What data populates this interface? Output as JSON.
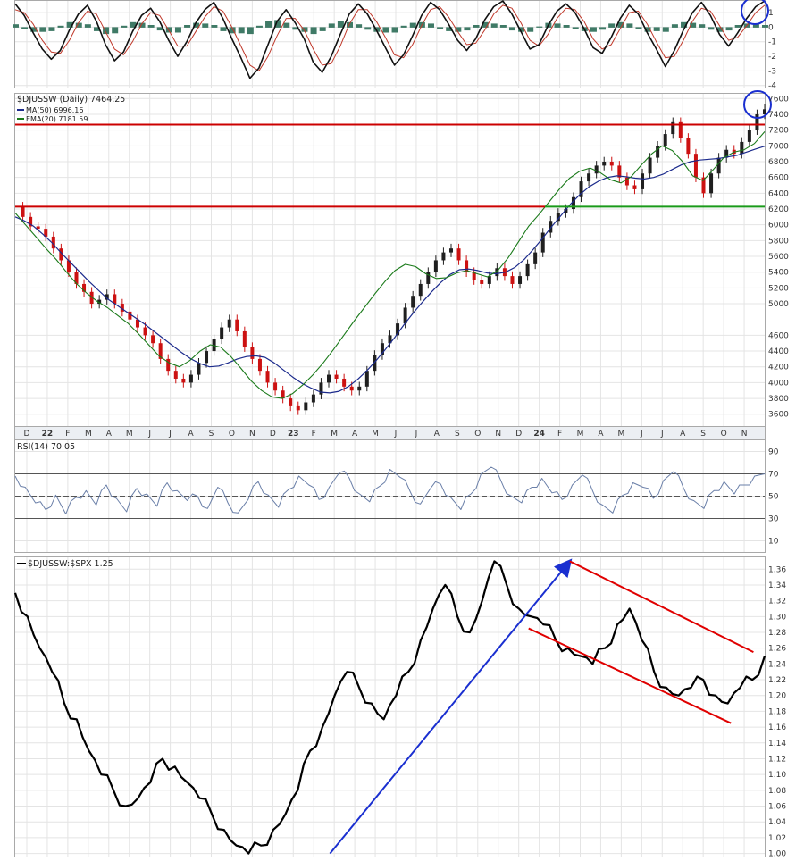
{
  "colors": {
    "background": "#ffffff",
    "panel_border": "#a9a9a9",
    "grid": "#e4e4e4",
    "axis_strip": "#eceff3",
    "axis_text": "#333333",
    "up_candle": "#1f1f1f",
    "down_candle": "#cc1111",
    "ma50": "#1b2a8c",
    "ema20": "#1a7a1a",
    "resistance": "#cc0000",
    "support": "#1a9a1a",
    "rsi_line": "#6a7fa8",
    "ratio_line": "#000000",
    "uptrend_arrow": "#1a2fd0",
    "channel": "#e00000",
    "circle": "#1a2fd0",
    "macd_line": "#111111",
    "macd_signal": "#c0392b",
    "macd_hist": "#3f7a66"
  },
  "x_axis": {
    "labels": [
      "D",
      "22",
      "F",
      "M",
      "A",
      "M",
      "J",
      "J",
      "A",
      "S",
      "O",
      "N",
      "D",
      "23",
      "F",
      "M",
      "A",
      "M",
      "J",
      "J",
      "A",
      "S",
      "O",
      "N",
      "D",
      "24",
      "F",
      "M",
      "A",
      "M",
      "J",
      "J",
      "A",
      "S",
      "O",
      "N"
    ],
    "bold_labels": [
      "22",
      "23",
      "24"
    ]
  },
  "chart_data": [
    {
      "panel": "macd",
      "type": "line",
      "title": "",
      "y_ticks": [
        "1",
        "0",
        "-1",
        "-2",
        "-3",
        "-4"
      ],
      "ylim": [
        -4.2,
        1.8
      ],
      "grid": true,
      "series": [
        {
          "values": [
            1.6,
            0.8,
            -0.4,
            -1.5,
            -2.2,
            -1.6,
            -0.2,
            0.9,
            1.5,
            0.4,
            -1.2,
            -2.3,
            -1.7,
            -0.3,
            0.8,
            1.3,
            0.4,
            -0.9,
            -2.0,
            -1.0,
            0.3,
            1.2,
            1.7,
            0.6,
            -0.8,
            -2.1,
            -3.5,
            -2.8,
            -1.2,
            0.4,
            1.2,
            0.3,
            -0.8,
            -2.4,
            -3.1,
            -2.0,
            -0.5,
            0.9,
            1.6,
            0.9,
            -0.2,
            -1.4,
            -2.6,
            -1.9,
            -0.6,
            0.8,
            1.7,
            1.2,
            0.2,
            -0.9,
            -1.6,
            -0.8,
            0.5,
            1.4,
            1.8,
            0.9,
            -0.3,
            -1.5,
            -1.2,
            0.1,
            1.1,
            1.6,
            1.0,
            -0.1,
            -1.4,
            -1.8,
            -0.7,
            0.6,
            1.5,
            0.9,
            -0.4,
            -1.5,
            -2.7,
            -1.6,
            -0.2,
            1.0,
            1.7,
            0.8,
            -0.5,
            -1.3,
            -0.4,
            0.6,
            1.4,
            1.8
          ]
        },
        {
          "values": [
            1.2,
            1.0,
            0.2,
            -0.9,
            -1.7,
            -1.8,
            -0.9,
            0.3,
            1.1,
            0.9,
            -0.3,
            -1.5,
            -1.9,
            -1.0,
            0.2,
            1.0,
            0.8,
            -0.2,
            -1.3,
            -1.3,
            -0.3,
            0.7,
            1.4,
            1.1,
            0.0,
            -1.3,
            -2.6,
            -3.0,
            -2.0,
            -0.6,
            0.6,
            0.6,
            -0.2,
            -1.5,
            -2.6,
            -2.5,
            -1.3,
            0.2,
            1.2,
            1.2,
            0.4,
            -0.7,
            -1.9,
            -2.1,
            -1.2,
            0.1,
            1.2,
            1.4,
            0.7,
            -0.3,
            -1.2,
            -1.1,
            -0.2,
            0.9,
            1.5,
            1.3,
            0.3,
            -0.9,
            -1.3,
            -0.5,
            0.6,
            1.3,
            1.2,
            0.4,
            -0.8,
            -1.5,
            -1.2,
            -0.1,
            1.0,
            1.1,
            0.2,
            -1.0,
            -2.1,
            -2.0,
            -0.9,
            0.4,
            1.3,
            1.1,
            0.1,
            -0.9,
            -0.7,
            0.1,
            1.0,
            1.5
          ]
        }
      ]
    },
    {
      "panel": "price",
      "type": "line",
      "title": "$DJUSSW (Daily) 7464.25",
      "legend": [
        {
          "name": "MA(50) 6996.16",
          "color": "#1b2a8c"
        },
        {
          "name": "EMA(20) 7181.59",
          "color": "#1a7a1a"
        }
      ],
      "ylim": [
        3450,
        7660
      ],
      "y_ticks": [
        7600,
        7400,
        7200,
        7000,
        6800,
        6600,
        6400,
        6200,
        6000,
        5800,
        5600,
        5400,
        5200,
        5000,
        4600,
        4400,
        4200,
        4000,
        3800,
        3600
      ],
      "grid": true,
      "price_values": [
        6230,
        6100,
        5980,
        5950,
        5850,
        5700,
        5550,
        5400,
        5250,
        5150,
        5000,
        5050,
        5120,
        5000,
        4900,
        4800,
        4700,
        4600,
        4500,
        4300,
        4150,
        4050,
        4000,
        4100,
        4250,
        4400,
        4550,
        4700,
        4800,
        4650,
        4450,
        4300,
        4150,
        4000,
        3900,
        3800,
        3700,
        3650,
        3750,
        3850,
        4000,
        4100,
        4050,
        3950,
        3900,
        3950,
        4150,
        4350,
        4500,
        4600,
        4750,
        4950,
        5100,
        5250,
        5400,
        5550,
        5650,
        5700,
        5550,
        5400,
        5300,
        5250,
        5350,
        5450,
        5350,
        5250,
        5350,
        5500,
        5650,
        5900,
        6050,
        6150,
        6200,
        6350,
        6550,
        6650,
        6750,
        6800,
        6750,
        6600,
        6500,
        6450,
        6650,
        6850,
        7000,
        7150,
        7300,
        7100,
        6900,
        6600,
        6400,
        6650,
        6850,
        6950,
        6900,
        7050,
        7200,
        7400,
        7464
      ],
      "ma50_values": [
        6100,
        6050,
        5980,
        5880,
        5770,
        5640,
        5520,
        5400,
        5280,
        5170,
        5060,
        4980,
        4900,
        4820,
        4740,
        4650,
        4560,
        4470,
        4380,
        4300,
        4240,
        4200,
        4210,
        4250,
        4300,
        4330,
        4340,
        4320,
        4250,
        4160,
        4070,
        3990,
        3930,
        3880,
        3870,
        3890,
        3950,
        4040,
        4150,
        4280,
        4420,
        4570,
        4730,
        4880,
        5020,
        5150,
        5270,
        5370,
        5430,
        5440,
        5420,
        5390,
        5380,
        5400,
        5460,
        5560,
        5690,
        5830,
        5980,
        6120,
        6260,
        6380,
        6480,
        6550,
        6600,
        6620,
        6610,
        6590,
        6580,
        6600,
        6640,
        6700,
        6760,
        6800,
        6820,
        6830,
        6840,
        6860,
        6880,
        6920,
        6960,
        6996
      ],
      "ema20_values": [
        6150,
        6000,
        5850,
        5700,
        5560,
        5400,
        5250,
        5130,
        5030,
        4950,
        4850,
        4750,
        4620,
        4480,
        4340,
        4250,
        4200,
        4280,
        4400,
        4480,
        4450,
        4330,
        4180,
        4020,
        3900,
        3820,
        3800,
        3860,
        3970,
        4100,
        4250,
        4420,
        4600,
        4780,
        4950,
        5120,
        5280,
        5420,
        5500,
        5470,
        5380,
        5320,
        5330,
        5390,
        5420,
        5380,
        5340,
        5420,
        5580,
        5780,
        5980,
        6130,
        6290,
        6450,
        6590,
        6680,
        6720,
        6660,
        6570,
        6530,
        6610,
        6760,
        6900,
        7000,
        6940,
        6800,
        6620,
        6560,
        6700,
        6850,
        6920,
        6950,
        7030,
        7180
      ],
      "resistance_level": 7270,
      "support_left_level": 6230,
      "support_right_level": 6230
    },
    {
      "panel": "rsi",
      "type": "line",
      "title": "RSI(14) 70.05",
      "ylim": [
        0,
        100
      ],
      "y_ticks": [
        90,
        70,
        50,
        30,
        10
      ],
      "guide_levels": [
        70,
        50,
        30
      ],
      "values": [
        68,
        58,
        44,
        38,
        51,
        34,
        49,
        55,
        42,
        60,
        48,
        36,
        57,
        52,
        41,
        62,
        55,
        46,
        50,
        39,
        58,
        44,
        35,
        47,
        63,
        51,
        40,
        56,
        68,
        60,
        47,
        58,
        71,
        66,
        52,
        45,
        59,
        74,
        67,
        54,
        43,
        57,
        61,
        49,
        38,
        52,
        70,
        76,
        63,
        50,
        44,
        58,
        66,
        53,
        47,
        60,
        69,
        55,
        42,
        35,
        51,
        62,
        58,
        48,
        64,
        72,
        57,
        46,
        39,
        55,
        63,
        52,
        60,
        68,
        70
      ]
    },
    {
      "panel": "ratio",
      "type": "line",
      "title": "$DJUSSW:$SPX 1.25",
      "ylim": [
        0.995,
        1.375
      ],
      "y_ticks": [
        "1.36",
        "1.34",
        "1.32",
        "1.30",
        "1.28",
        "1.26",
        "1.24",
        "1.22",
        "1.20",
        "1.18",
        "1.16",
        "1.14",
        "1.12",
        "1.10",
        "1.08",
        "1.06",
        "1.04",
        "1.02",
        "1.00"
      ],
      "values": [
        1.33,
        1.3,
        1.26,
        1.23,
        1.19,
        1.17,
        1.13,
        1.1,
        1.08,
        1.06,
        1.07,
        1.09,
        1.12,
        1.11,
        1.09,
        1.07,
        1.05,
        1.03,
        1.01,
        1.0,
        1.01,
        1.03,
        1.05,
        1.08,
        1.13,
        1.16,
        1.2,
        1.23,
        1.21,
        1.19,
        1.17,
        1.2,
        1.23,
        1.27,
        1.31,
        1.34,
        1.3,
        1.28,
        1.32,
        1.37,
        1.34,
        1.31,
        1.3,
        1.29,
        1.27,
        1.26,
        1.25,
        1.24,
        1.26,
        1.29,
        1.31,
        1.27,
        1.23,
        1.21,
        1.2,
        1.21,
        1.22,
        1.2,
        1.19,
        1.21,
        1.22,
        1.25
      ],
      "annotations": [
        {
          "kind": "uptrend_arrow",
          "from": [
            0.42,
            1.0
          ],
          "to": [
            0.74,
            1.37
          ]
        },
        {
          "kind": "channel_upper",
          "from": [
            0.74,
            1.37
          ],
          "to": [
            0.985,
            1.255
          ]
        },
        {
          "kind": "channel_lower",
          "from": [
            0.685,
            1.285
          ],
          "to": [
            0.955,
            1.165
          ]
        }
      ]
    }
  ]
}
